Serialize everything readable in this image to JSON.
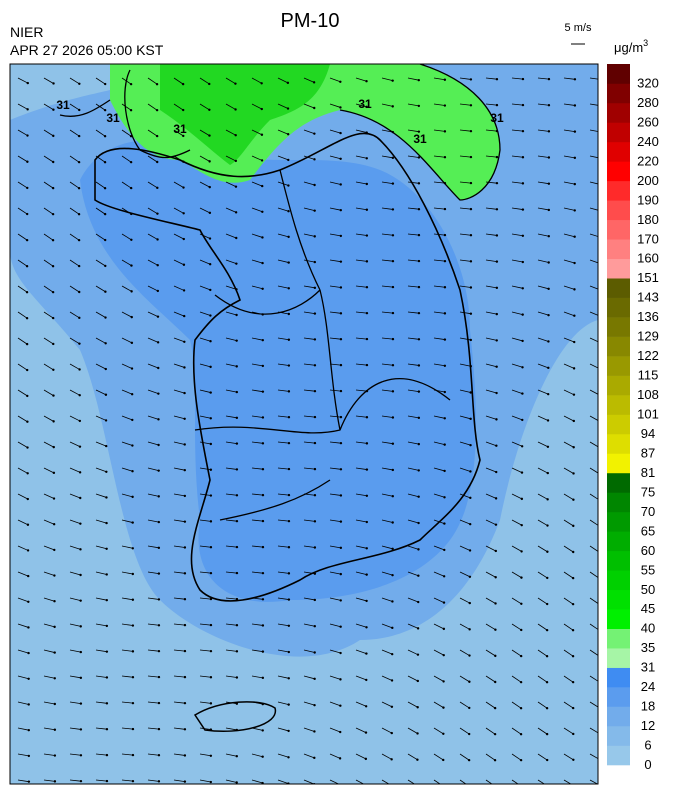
{
  "header": {
    "title": "PM-10",
    "source": "NIER",
    "datetime": "APR 27 2026 05:00 KST",
    "wind_scale": "5 m/s",
    "unit": "μg/m",
    "unit_exponent": "3"
  },
  "contour_labels": [
    "31",
    "31",
    "31",
    "31",
    "31",
    "31"
  ],
  "colorbar": {
    "levels": [
      0,
      6,
      12,
      18,
      24,
      31,
      35,
      40,
      45,
      50,
      55,
      60,
      65,
      70,
      75,
      81,
      87,
      94,
      101,
      108,
      115,
      122,
      129,
      136,
      143,
      151,
      160,
      170,
      180,
      190,
      200,
      220,
      240,
      260,
      280,
      320
    ],
    "colors": [
      "#97c8ea",
      "#84baea",
      "#72aceb",
      "#5b9cee",
      "#3f8cf2",
      "#a6f5a6",
      "#74f274",
      "#00f000",
      "#00e000",
      "#00d000",
      "#00bf00",
      "#00ad00",
      "#009a00",
      "#008600",
      "#006a00",
      "#f2f200",
      "#dede00",
      "#cccc00",
      "#bbbb00",
      "#aaaa00",
      "#999900",
      "#888800",
      "#787800",
      "#6a6a00",
      "#5c5c00",
      "#ff9b9b",
      "#ff8080",
      "#ff6666",
      "#ff4c4c",
      "#ff2a2a",
      "#ff0000",
      "#e00000",
      "#c00000",
      "#a00000",
      "#800000",
      "#600000"
    ]
  }
}
